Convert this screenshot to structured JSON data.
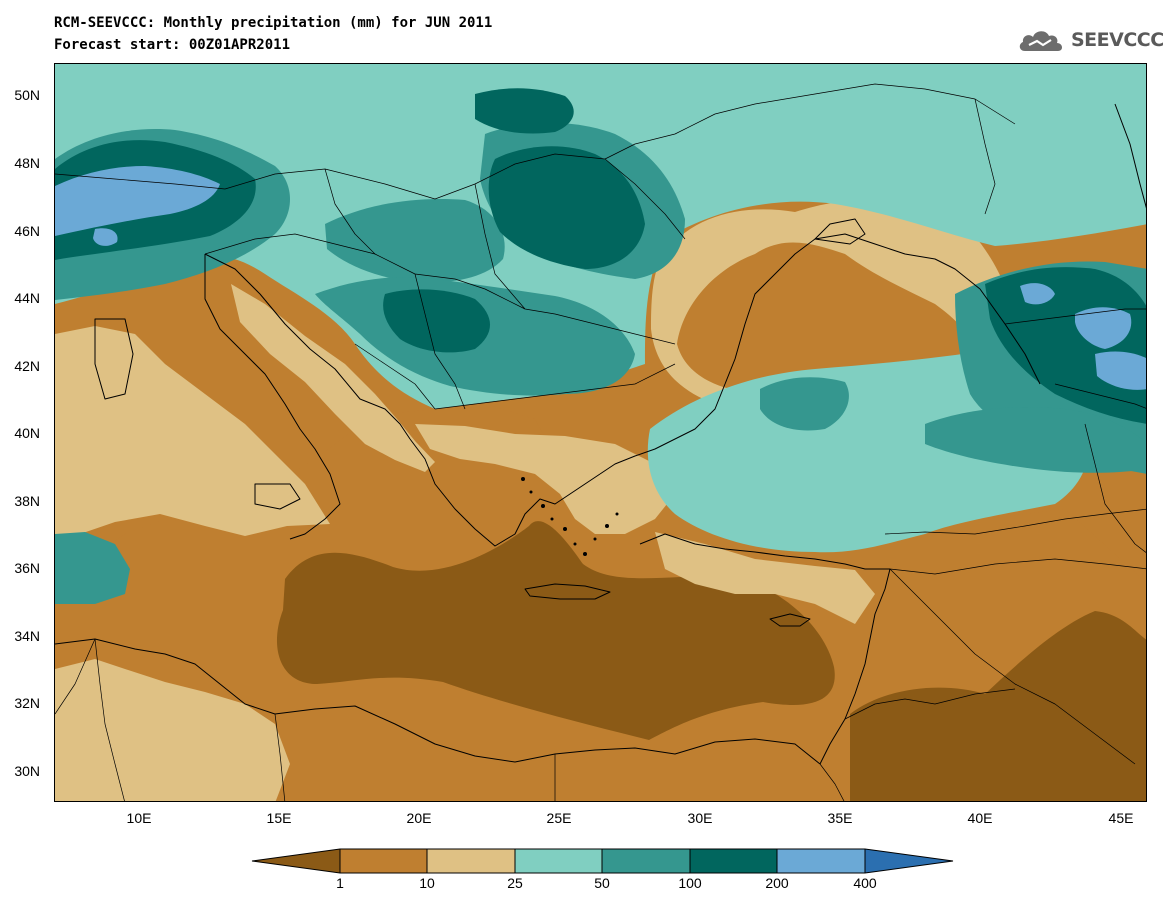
{
  "header": {
    "title": "RCM-SEEVCCC: Monthly precipitation (mm) for JUN 2011",
    "subtitle": "Forecast start: 00Z01APR2011"
  },
  "logo": {
    "text": "SEEVCCC",
    "icon": "cloud-logo-icon"
  },
  "map": {
    "lon_range": [
      7,
      46
    ],
    "lat_range": [
      29,
      51
    ],
    "lat_labels": [
      "50N",
      "48N",
      "46N",
      "44N",
      "42N",
      "40N",
      "38N",
      "36N",
      "34N",
      "32N",
      "30N"
    ],
    "lon_labels": [
      "10E",
      "15E",
      "20E",
      "25E",
      "30E",
      "35E",
      "40E",
      "45E"
    ]
  },
  "legend": {
    "labels": [
      "1",
      "10",
      "25",
      "50",
      "100",
      "200",
      "400"
    ],
    "colors": [
      "#8b5a16",
      "#bf7f30",
      "#dfc184",
      "#80cfc1",
      "#35978f",
      "#01665e",
      "#6ba9d6",
      "#2b6fb0"
    ]
  }
}
